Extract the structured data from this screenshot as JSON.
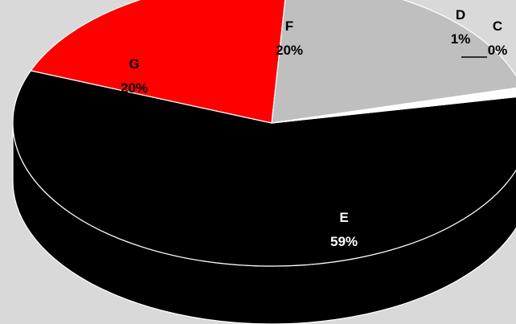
{
  "chart_data": {
    "type": "pie",
    "style": "3d-exploded",
    "title": "",
    "categories": [
      "C",
      "D",
      "E",
      "F",
      "G"
    ],
    "values": [
      0,
      1,
      59,
      20,
      20
    ],
    "value_labels": [
      "0%",
      "1%",
      "59%",
      "20%",
      "20%"
    ],
    "colors": [
      "#ffffff",
      "#ffffff",
      "#000000",
      "#bfbfbf",
      "#ff0000"
    ],
    "label_colors": [
      "#000000",
      "#000000",
      "#ffffff",
      "#000000",
      "#000000"
    ],
    "legend": "none",
    "background": "#d9d9d9"
  }
}
